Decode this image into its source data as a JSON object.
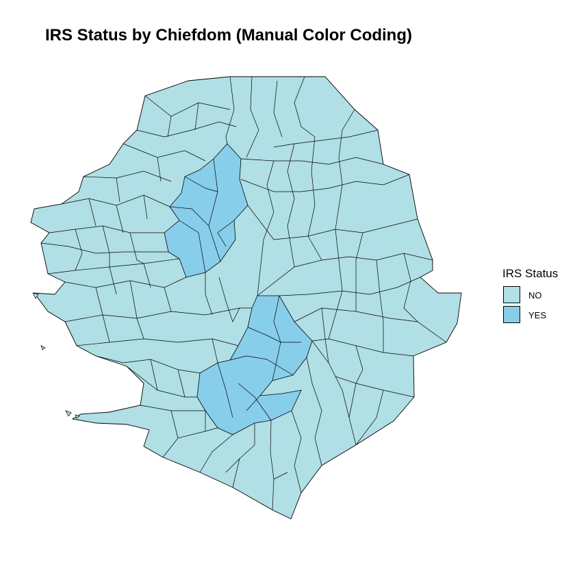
{
  "title": "IRS Status by Chiefdom (Manual Color Coding)",
  "legend": {
    "title": "IRS Status",
    "items": [
      {
        "label": "NO",
        "color": "#b0dfe5"
      },
      {
        "label": "YES",
        "color": "#87ceeb"
      }
    ]
  },
  "colors": {
    "no": "#b0dfe5",
    "yes": "#87ceeb",
    "border": "#000000",
    "background": "#ffffff"
  }
}
